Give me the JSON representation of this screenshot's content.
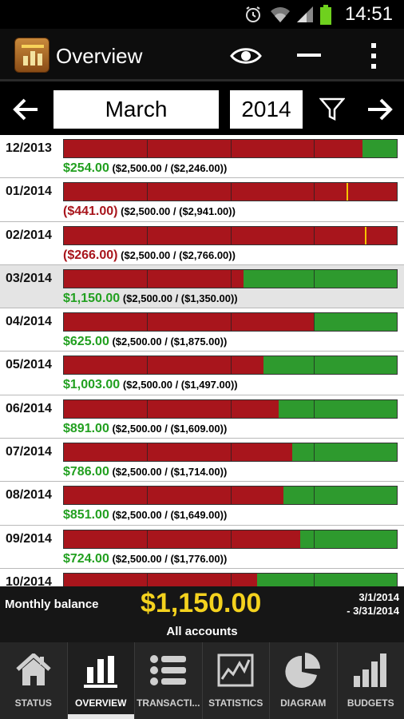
{
  "status_bar": {
    "time": "14:51",
    "icons": [
      "alarm-icon",
      "wifi-icon",
      "signal-icon",
      "battery-icon"
    ]
  },
  "action_bar": {
    "title": "Overview",
    "icons": [
      "app-logo-icon",
      "eye-icon",
      "minus-icon",
      "overflow-menu-icon"
    ]
  },
  "nav": {
    "month": "March",
    "year": "2014",
    "icons": [
      "arrow-left-icon",
      "filter-icon",
      "arrow-right-icon"
    ]
  },
  "colors": {
    "spent": "#a8151c",
    "remaining": "#2e9a2e",
    "positive_text": "#22a020",
    "negative_text": "#a8151c",
    "over_marker": "#f5c400",
    "balance_value": "#f4d21e"
  },
  "rows": [
    {
      "month": "12/2013",
      "amount": "$254.00",
      "sign": "pos",
      "detail": "($2,500.00 / ($2,246.00))",
      "spent_fraction": 0.898,
      "marker_fraction": null,
      "selected": false
    },
    {
      "month": "01/2014",
      "amount": "($441.00)",
      "sign": "neg",
      "detail": "($2,500.00 / ($2,941.00))",
      "spent_fraction": 1.0,
      "marker_fraction": 0.85,
      "selected": false
    },
    {
      "month": "02/2014",
      "amount": "($266.00)",
      "sign": "neg",
      "detail": "($2,500.00 / ($2,766.00))",
      "spent_fraction": 1.0,
      "marker_fraction": 0.904,
      "selected": false
    },
    {
      "month": "03/2014",
      "amount": "$1,150.00",
      "sign": "pos",
      "detail": "($2,500.00 / ($1,350.00))",
      "spent_fraction": 0.54,
      "marker_fraction": null,
      "selected": true
    },
    {
      "month": "04/2014",
      "amount": "$625.00",
      "sign": "pos",
      "detail": "($2,500.00 / ($1,875.00))",
      "spent_fraction": 0.75,
      "marker_fraction": null,
      "selected": false
    },
    {
      "month": "05/2014",
      "amount": "$1,003.00",
      "sign": "pos",
      "detail": "($2,500.00 / ($1,497.00))",
      "spent_fraction": 0.599,
      "marker_fraction": null,
      "selected": false
    },
    {
      "month": "06/2014",
      "amount": "$891.00",
      "sign": "pos",
      "detail": "($2,500.00 / ($1,609.00))",
      "spent_fraction": 0.644,
      "marker_fraction": null,
      "selected": false
    },
    {
      "month": "07/2014",
      "amount": "$786.00",
      "sign": "pos",
      "detail": "($2,500.00 / ($1,714.00))",
      "spent_fraction": 0.686,
      "marker_fraction": null,
      "selected": false
    },
    {
      "month": "08/2014",
      "amount": "$851.00",
      "sign": "pos",
      "detail": "($2,500.00 / ($1,649.00))",
      "spent_fraction": 0.66,
      "marker_fraction": null,
      "selected": false
    },
    {
      "month": "09/2014",
      "amount": "$724.00",
      "sign": "pos",
      "detail": "($2,500.00 / ($1,776.00))",
      "spent_fraction": 0.71,
      "marker_fraction": null,
      "selected": false
    },
    {
      "month": "10/2014",
      "amount": "",
      "sign": "pos",
      "detail": "",
      "spent_fraction": 0.58,
      "marker_fraction": null,
      "selected": false
    }
  ],
  "summary": {
    "label": "Monthly balance",
    "value": "$1,150.00",
    "range_start": "3/1/2014",
    "range_end": "- 3/31/2014",
    "accounts": "All accounts"
  },
  "tabs": [
    {
      "label": "STATUS",
      "icon": "home-icon",
      "active": false
    },
    {
      "label": "OVERVIEW",
      "icon": "bar-chart-icon",
      "active": true
    },
    {
      "label": "TRANSACTI...",
      "icon": "list-icon",
      "active": false
    },
    {
      "label": "STATISTICS",
      "icon": "line-chart-icon",
      "active": false
    },
    {
      "label": "DIAGRAM",
      "icon": "pie-chart-icon",
      "active": false
    },
    {
      "label": "BUDGETS",
      "icon": "ascending-bars-icon",
      "active": false
    }
  ]
}
